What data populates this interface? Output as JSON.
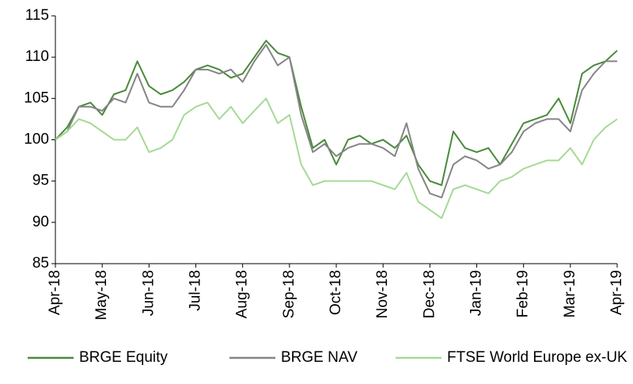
{
  "chart_data": {
    "type": "line",
    "categories": [
      "Apr-18",
      null,
      null,
      null,
      "May-18",
      null,
      null,
      null,
      "Jun-18",
      null,
      null,
      null,
      "Jul-18",
      null,
      null,
      null,
      "Aug-18",
      null,
      null,
      null,
      "Sep-18",
      null,
      null,
      null,
      "Oct-18",
      null,
      null,
      null,
      "Nov-18",
      null,
      null,
      null,
      "Dec-18",
      null,
      null,
      null,
      "Jan-19",
      null,
      null,
      null,
      "Feb-19",
      null,
      null,
      null,
      "Mar-19",
      null,
      null,
      null,
      "Apr-19"
    ],
    "series": [
      {
        "name": "BRGE Equity",
        "color": "#4a8a3a",
        "values": [
          100,
          101.5,
          104,
          104.5,
          103,
          105.5,
          106,
          109.5,
          106.5,
          105.5,
          106,
          107,
          108.5,
          109,
          108.5,
          107.5,
          108,
          110,
          112,
          110.5,
          110,
          104,
          99,
          100,
          97,
          100,
          100.5,
          99.5,
          100,
          99,
          100.5,
          97,
          95,
          94.5,
          101,
          99,
          98.5,
          99,
          97,
          99.5,
          102,
          102.5,
          103,
          105,
          102,
          108,
          109,
          109.5,
          110.8
        ]
      },
      {
        "name": "BRGE NAV",
        "color": "#858585",
        "values": [
          100,
          101,
          104,
          104,
          103.5,
          105,
          104.5,
          108,
          104.5,
          104,
          104,
          106,
          108.5,
          108.5,
          108,
          108.5,
          107,
          109.5,
          111.5,
          109,
          110,
          103,
          98.5,
          99.5,
          98,
          99,
          99.5,
          99.5,
          99,
          98,
          102,
          96.5,
          93.5,
          93,
          97,
          98,
          97.5,
          96.5,
          97,
          98.5,
          101,
          102,
          102.5,
          102.5,
          101,
          106,
          108,
          109.5,
          109.5
        ]
      },
      {
        "name": "FTSE World Europe ex-UK",
        "color": "#a6d996",
        "values": [
          100,
          101,
          102.5,
          102,
          101,
          100,
          100,
          101.5,
          98.5,
          99,
          100,
          103,
          104,
          104.5,
          102.5,
          104,
          102,
          103.5,
          105,
          102,
          103,
          97,
          94.5,
          95,
          95,
          95,
          95,
          95,
          94.5,
          94,
          96,
          92.5,
          91.5,
          90.5,
          94,
          94.5,
          94,
          93.5,
          95,
          95.5,
          96.5,
          97,
          97.5,
          97.5,
          99,
          97,
          100,
          101.5,
          102.5
        ]
      }
    ],
    "ylim": [
      85,
      115
    ],
    "yticks": [
      85,
      90,
      95,
      100,
      105,
      110,
      115
    ],
    "grid": false,
    "legend": "bottom"
  }
}
